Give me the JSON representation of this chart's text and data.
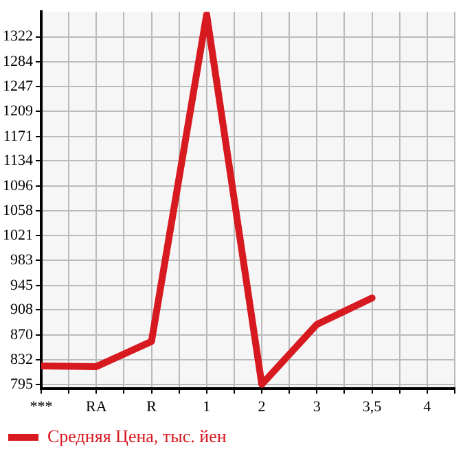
{
  "chart_data": {
    "type": "line",
    "categories": [
      "***",
      "RA",
      "R",
      "1",
      "2",
      "3",
      "3,5",
      "4"
    ],
    "series": [
      {
        "name": "Средняя Цена, тыс. йен",
        "color": "#d71920",
        "values": [
          823,
          822,
          860,
          1356,
          795,
          886,
          926,
          null
        ]
      }
    ],
    "ylim": [
      789,
      1360
    ],
    "yticks": [
      795,
      832,
      870,
      908,
      945,
      983,
      1021,
      1058,
      1096,
      1134,
      1171,
      1209,
      1247,
      1284,
      1322
    ],
    "grid": true,
    "legend": "bottom left",
    "marker": "none",
    "line_style": "solid"
  }
}
